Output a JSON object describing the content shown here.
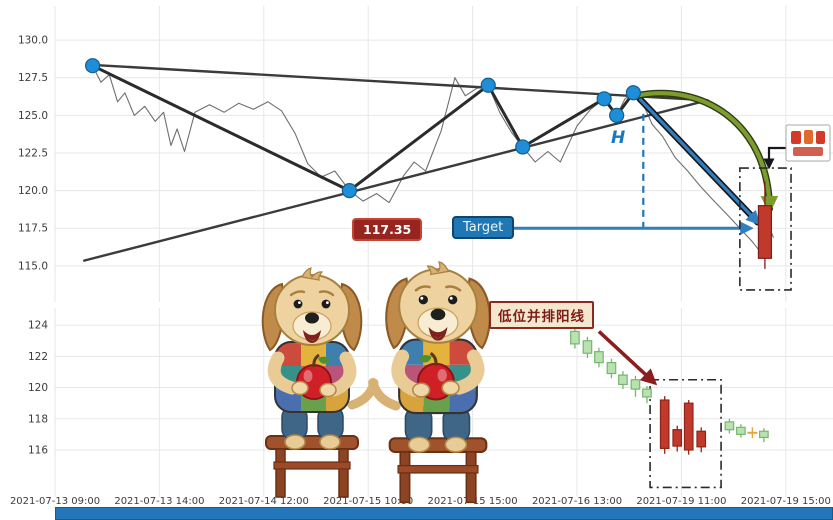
{
  "colors": {
    "accent_blue": "#1f77b4",
    "pivot_dot": "#1f8ed6",
    "trend_line": "#3b3b3b",
    "price_line": "#6f6f6f",
    "green_arrow": "#7d9c2e",
    "dark_red": "#8b1f1f",
    "candle_up": "#c0392b",
    "candle_down": "#b9e2b1",
    "doji": "#e8a33d",
    "grid": "#e7e7e7"
  },
  "x_axis": {
    "labels": [
      "2021-07-13 09:00",
      "2021-07-13 14:00",
      "2021-07-14 12:00",
      "2021-07-15 10:00",
      "2021-07-15 15:00",
      "2021-07-16 13:00",
      "2021-07-19 11:00",
      "2021-07-19 15:00"
    ]
  },
  "annotations": {
    "price_label": {
      "text": "117.35",
      "v": 117.35
    },
    "target": {
      "text": "Target",
      "v": 117.5,
      "arrow_from_t": 4.35,
      "arrow_to_t": 6.655
    },
    "h_label": {
      "text": "H"
    },
    "pattern_label": {
      "text": "低位并排阳线"
    },
    "drop_arrow": {
      "from": [
        5.6,
        126.1
      ],
      "to": [
        6.73,
        117.9
      ]
    },
    "projection_arrow": {
      "from": [
        5.565,
        126.3
      ],
      "c1": [
        6.2,
        127.2
      ],
      "c2": [
        6.83,
        124.5
      ],
      "to": [
        6.845,
        118.8
      ]
    },
    "pattern_arrow": {
      "from": [
        5.21,
        123.6
      ],
      "to": [
        5.735,
        120.35
      ]
    },
    "top_box": {
      "t0": 6.56,
      "t1": 7.05,
      "v0": 113.4,
      "v1": 121.5
    },
    "bottom_box": {
      "t0": 5.7,
      "t1": 6.38,
      "v0": 113.6,
      "v1": 120.5
    }
  },
  "chart_data": [
    {
      "type": "line",
      "title": "",
      "panel": "price",
      "ylim": [
        112.6,
        132.0
      ],
      "grid": true,
      "y_ticks": [
        {
          "v": 130.0,
          "label": "130.0"
        },
        {
          "v": 127.5,
          "label": "127.5"
        },
        {
          "v": 125.0,
          "label": "125.0"
        },
        {
          "v": 122.5,
          "label": "122.5"
        },
        {
          "v": 120.0,
          "label": "120.0"
        },
        {
          "v": 117.5,
          "label": "117.5"
        },
        {
          "v": 115.0,
          "label": "115.0"
        }
      ],
      "series": [
        {
          "name": "price",
          "color": "#6f6f6f",
          "width": 1.1,
          "points": [
            [
              0.36,
              128.3
            ],
            [
              0.44,
              127.2
            ],
            [
              0.52,
              127.7
            ],
            [
              0.6,
              125.9
            ],
            [
              0.67,
              126.5
            ],
            [
              0.76,
              125.0
            ],
            [
              0.86,
              125.6
            ],
            [
              0.96,
              124.6
            ],
            [
              1.04,
              125.2
            ],
            [
              1.11,
              123.0
            ],
            [
              1.17,
              124.1
            ],
            [
              1.24,
              122.6
            ],
            [
              1.34,
              125.2
            ],
            [
              1.48,
              125.7
            ],
            [
              1.62,
              125.2
            ],
            [
              1.76,
              125.8
            ],
            [
              1.9,
              125.4
            ],
            [
              2.04,
              125.9
            ],
            [
              2.17,
              125.3
            ],
            [
              2.3,
              123.8
            ],
            [
              2.42,
              121.8
            ],
            [
              2.55,
              120.9
            ],
            [
              2.68,
              121.3
            ],
            [
              2.82,
              120.0
            ],
            [
              2.95,
              119.3
            ],
            [
              3.08,
              119.8
            ],
            [
              3.2,
              119.2
            ],
            [
              3.34,
              121.0
            ],
            [
              3.44,
              121.9
            ],
            [
              3.55,
              121.3
            ],
            [
              3.7,
              124.0
            ],
            [
              3.83,
              127.5
            ],
            [
              3.93,
              126.3
            ],
            [
              4.04,
              126.8
            ],
            [
              4.15,
              127.0
            ],
            [
              4.26,
              125.2
            ],
            [
              4.37,
              123.9
            ],
            [
              4.48,
              122.9
            ],
            [
              4.6,
              121.9
            ],
            [
              4.72,
              122.6
            ],
            [
              4.84,
              121.9
            ],
            [
              5.0,
              124.3
            ],
            [
              5.13,
              125.4
            ],
            [
              5.26,
              126.1
            ],
            [
              5.32,
              125.5
            ],
            [
              5.38,
              125.0
            ],
            [
              5.46,
              126.1
            ],
            [
              5.54,
              126.5
            ],
            [
              5.63,
              125.8
            ],
            [
              5.72,
              124.4
            ],
            [
              5.82,
              123.6
            ],
            [
              5.94,
              122.2
            ],
            [
              6.06,
              121.3
            ],
            [
              6.18,
              120.3
            ],
            [
              6.3,
              119.4
            ],
            [
              6.44,
              118.4
            ],
            [
              6.56,
              117.5
            ],
            [
              6.68,
              116.6
            ],
            [
              6.76,
              115.9
            ],
            [
              6.82,
              118.0
            ],
            [
              6.88,
              116.9
            ]
          ]
        },
        {
          "name": "upper-trendline",
          "color": "#3b3b3b",
          "width": 2.4,
          "points": [
            [
              0.36,
              128.35
            ],
            [
              6.25,
              126.0
            ]
          ]
        },
        {
          "name": "lower-trendline",
          "color": "#3b3b3b",
          "width": 2.4,
          "points": [
            [
              0.28,
              115.35
            ],
            [
              6.25,
              126.0
            ]
          ]
        },
        {
          "name": "zigzag",
          "color": "#2b2b2b",
          "width": 3,
          "points": [
            [
              0.36,
              128.3
            ],
            [
              2.82,
              120.0
            ],
            [
              4.15,
              127.0
            ],
            [
              4.48,
              122.9
            ],
            [
              5.26,
              126.1
            ],
            [
              5.38,
              125.0
            ],
            [
              5.54,
              126.5
            ]
          ]
        }
      ],
      "pivot_points": [
        [
          0.36,
          128.3
        ],
        [
          2.82,
          120.0
        ],
        [
          4.15,
          127.0
        ],
        [
          4.48,
          122.9
        ],
        [
          5.26,
          126.1
        ],
        [
          5.38,
          125.0
        ],
        [
          5.54,
          126.5
        ]
      ],
      "candles": [
        {
          "t": 6.8,
          "o": 115.5,
          "h": 120.6,
          "l": 114.8,
          "c": 119.0,
          "kind": "up"
        }
      ],
      "measure_line": {
        "t": 5.635,
        "from": 125.1,
        "to": 117.5
      },
      "target_level": 117.35
    },
    {
      "type": "candlestick",
      "panel": "detail",
      "ylim": [
        112.97,
        125.09
      ],
      "grid": true,
      "y_ticks": [
        {
          "v": 124,
          "label": "124"
        },
        {
          "v": 122,
          "label": "122"
        },
        {
          "v": 120,
          "label": "120"
        },
        {
          "v": 118,
          "label": "118"
        },
        {
          "v": 116,
          "label": "116"
        }
      ],
      "candles": [
        {
          "t": 4.98,
          "o": 123.6,
          "h": 123.9,
          "l": 122.5,
          "c": 122.8,
          "kind": "down"
        },
        {
          "t": 5.1,
          "o": 123.0,
          "h": 123.25,
          "l": 121.9,
          "c": 122.2,
          "kind": "down"
        },
        {
          "t": 5.21,
          "o": 122.3,
          "h": 122.55,
          "l": 121.3,
          "c": 121.6,
          "kind": "down"
        },
        {
          "t": 5.33,
          "o": 121.6,
          "h": 121.85,
          "l": 120.6,
          "c": 120.9,
          "kind": "down"
        },
        {
          "t": 5.44,
          "o": 120.8,
          "h": 121.05,
          "l": 119.9,
          "c": 120.2,
          "kind": "down"
        },
        {
          "t": 5.56,
          "o": 120.5,
          "h": 120.75,
          "l": 119.4,
          "c": 119.9,
          "kind": "down"
        },
        {
          "t": 5.67,
          "o": 119.9,
          "h": 120.1,
          "l": 119.0,
          "c": 119.4,
          "kind": "down"
        },
        {
          "t": 5.84,
          "o": 116.1,
          "h": 119.45,
          "l": 115.75,
          "c": 119.2,
          "kind": "up"
        },
        {
          "t": 5.96,
          "o": 116.25,
          "h": 117.55,
          "l": 115.9,
          "c": 117.3,
          "kind": "up"
        },
        {
          "t": 6.07,
          "o": 116.0,
          "h": 119.2,
          "l": 115.7,
          "c": 119.0,
          "kind": "up"
        },
        {
          "t": 6.19,
          "o": 116.2,
          "h": 117.45,
          "l": 115.85,
          "c": 117.2,
          "kind": "up"
        },
        {
          "t": 6.46,
          "o": 117.8,
          "h": 118.0,
          "l": 117.05,
          "c": 117.3,
          "kind": "down"
        },
        {
          "t": 6.57,
          "o": 117.45,
          "h": 117.65,
          "l": 116.8,
          "c": 117.0,
          "kind": "down"
        },
        {
          "t": 6.68,
          "o": 117.1,
          "h": 117.45,
          "l": 116.75,
          "c": 117.1,
          "kind": "doji"
        },
        {
          "t": 6.79,
          "o": 117.2,
          "h": 117.4,
          "l": 116.5,
          "c": 116.8,
          "kind": "down"
        }
      ]
    }
  ]
}
